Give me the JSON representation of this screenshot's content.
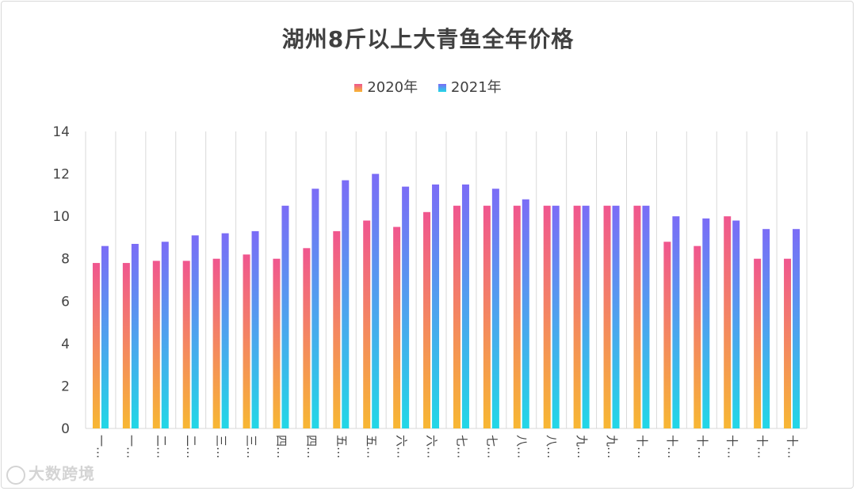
{
  "chart_data": {
    "type": "bar",
    "title": "湖州8斤以上大青鱼全年价格",
    "xlabel": "",
    "ylabel": "",
    "ylim": [
      0,
      14
    ],
    "yticks": [
      0,
      2,
      4,
      6,
      8,
      10,
      12,
      14
    ],
    "grid": "vertical",
    "legend_position": "top-center",
    "categories": [
      "一…",
      "一…",
      "二…",
      "二…",
      "三…",
      "三…",
      "四…",
      "四…",
      "五…",
      "五…",
      "六…",
      "六…",
      "七…",
      "七…",
      "八…",
      "八…",
      "九…",
      "九…",
      "十…",
      "十…",
      "十…",
      "十…",
      "十…",
      "十…"
    ],
    "series": [
      {
        "name": "2020年",
        "values": [
          7.8,
          7.8,
          7.9,
          7.9,
          8.0,
          8.2,
          8.0,
          8.5,
          9.3,
          9.8,
          9.5,
          10.2,
          10.5,
          10.5,
          10.5,
          10.5,
          10.5,
          10.5,
          10.5,
          8.8,
          8.6,
          10.0,
          8.0,
          8.0
        ]
      },
      {
        "name": "2021年",
        "values": [
          8.6,
          8.7,
          8.8,
          9.1,
          9.2,
          9.3,
          10.5,
          11.3,
          11.7,
          12.0,
          11.4,
          11.5,
          11.5,
          11.3,
          10.8,
          10.5,
          10.5,
          10.5,
          10.5,
          10.0,
          9.9,
          9.8,
          9.4,
          9.4
        ]
      }
    ]
  },
  "colors": {
    "series_2020_top": "#f0568f",
    "series_2020_bottom": "#f7b733",
    "series_2021_top": "#7b6cf6",
    "series_2021_bottom": "#22d7e6",
    "grid": "#d9d9d9"
  },
  "watermark": {
    "text": "大数跨境",
    "icon": "brand-logo-icon"
  }
}
